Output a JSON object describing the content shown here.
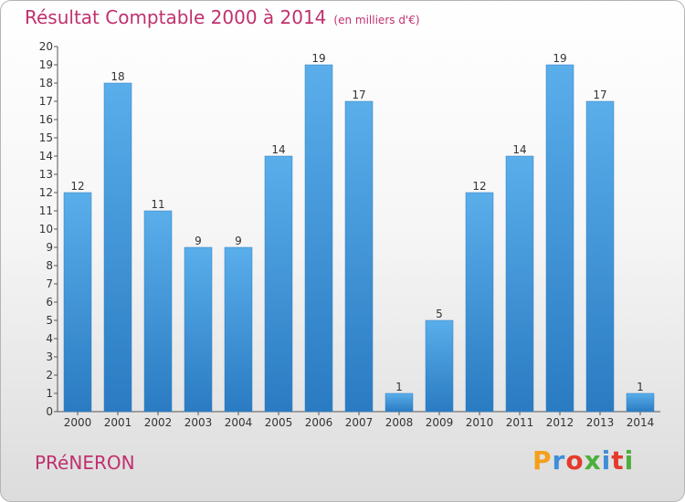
{
  "title": "Résultat Comptable 2000 à 2014",
  "subtitle": "(en milliers d'€)",
  "place": "PRéNERON",
  "logo": {
    "letters": [
      "P",
      "r",
      "o",
      "x",
      "i",
      "t",
      "i"
    ],
    "colors": [
      "#f4a01b",
      "#3f8ed8",
      "#e53a2c",
      "#4caf3a",
      "#3f8ed8",
      "#e53a2c",
      "#4caf3a"
    ]
  },
  "chart_data": {
    "type": "bar",
    "categories": [
      "2000",
      "2001",
      "2002",
      "2003",
      "2004",
      "2005",
      "2006",
      "2007",
      "2008",
      "2009",
      "2010",
      "2011",
      "2012",
      "2013",
      "2014"
    ],
    "values": [
      12,
      18,
      11,
      9,
      9,
      14,
      19,
      17,
      1,
      5,
      12,
      14,
      19,
      17,
      1
    ],
    "y_ticks": [
      "0",
      "1",
      "2",
      "3",
      "4",
      "5",
      "6",
      "7",
      "8",
      "9",
      "10",
      "11",
      "12",
      "13",
      "14",
      "15",
      "16",
      "17",
      "18",
      "19",
      "20"
    ],
    "ylim": [
      0,
      20
    ],
    "bar_color": "#4a9ee0",
    "grid": false
  }
}
